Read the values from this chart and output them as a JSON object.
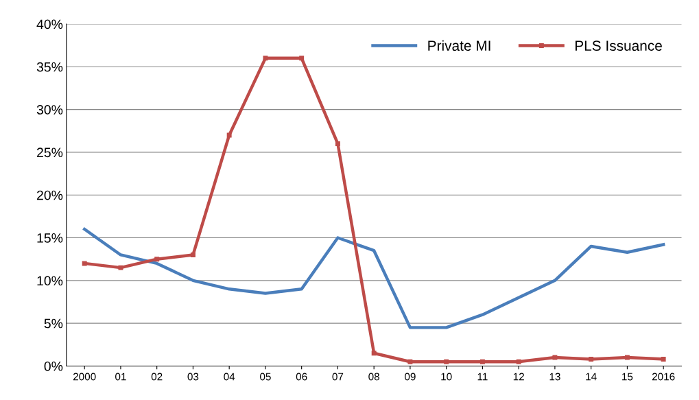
{
  "chart_data": {
    "type": "line",
    "categories": [
      "2000",
      "01",
      "02",
      "03",
      "04",
      "05",
      "06",
      "07",
      "08",
      "09",
      "10",
      "11",
      "12",
      "13",
      "14",
      "15",
      "2016"
    ],
    "series": [
      {
        "name": "Private MI",
        "color": "#4a7ebb",
        "marker": "none",
        "values": [
          16,
          13,
          12,
          10,
          9,
          8.5,
          9,
          15,
          13.5,
          4.5,
          4.5,
          6,
          8,
          10,
          14,
          13.3,
          14.2
        ]
      },
      {
        "name": "PLS Issuance",
        "color": "#be4b48",
        "marker": "square",
        "values": [
          12,
          11.5,
          12.5,
          13,
          27,
          36,
          36,
          26,
          1.5,
          0.5,
          0.5,
          0.5,
          0.5,
          1,
          0.8,
          1,
          0.8
        ]
      }
    ],
    "ylim": [
      0,
      40
    ],
    "yticks": [
      {
        "value": 0,
        "label": "0%"
      },
      {
        "value": 5,
        "label": "5%"
      },
      {
        "value": 10,
        "label": "10%"
      },
      {
        "value": 15,
        "label": "15%"
      },
      {
        "value": 20,
        "label": "20%"
      },
      {
        "value": 25,
        "label": "25%"
      },
      {
        "value": 30,
        "label": "30%"
      },
      {
        "value": 35,
        "label": "35%"
      },
      {
        "value": 40,
        "label": "40%"
      }
    ],
    "grid": "y",
    "legend": "top right",
    "line_style": "solid"
  }
}
